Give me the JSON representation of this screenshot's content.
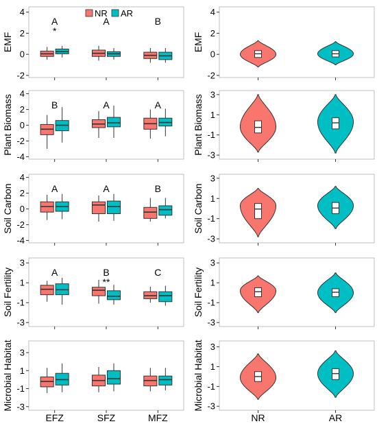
{
  "colors": {
    "NR": "#F8766D",
    "AR": "#00BFC4",
    "frame": "#bfbfbf",
    "outline": "#333333"
  },
  "legend": {
    "position": "top",
    "entries": [
      "NR",
      "AR"
    ]
  },
  "chart_data": [
    {
      "type": "box",
      "panel": "EMF-by-zone",
      "ylabel": "EMF",
      "ylim": [
        -2.2,
        4.5
      ],
      "yticks": [
        -2,
        0,
        2,
        4
      ],
      "categories": [
        "EFZ",
        "SFZ",
        "MFZ"
      ],
      "show_xticks": false,
      "letters": [
        "A",
        "A",
        "B"
      ],
      "stars": [
        "*",
        "",
        ""
      ],
      "series": [
        {
          "name": "NR",
          "boxes": [
            {
              "min": -0.5,
              "q1": -0.2,
              "median": 0.05,
              "q3": 0.3,
              "max": 0.7
            },
            {
              "min": -0.6,
              "q1": -0.2,
              "median": 0.1,
              "q3": 0.4,
              "max": 0.8
            },
            {
              "min": -0.8,
              "q1": -0.4,
              "median": -0.1,
              "q3": 0.2,
              "max": 0.6
            }
          ]
        },
        {
          "name": "AR",
          "boxes": [
            {
              "min": -0.3,
              "q1": 0.05,
              "median": 0.25,
              "q3": 0.5,
              "max": 0.8
            },
            {
              "min": -0.5,
              "q1": -0.2,
              "median": 0.05,
              "q3": 0.25,
              "max": 0.6
            },
            {
              "min": -0.8,
              "q1": -0.5,
              "median": -0.15,
              "q3": 0.2,
              "max": 0.6
            }
          ]
        }
      ]
    },
    {
      "type": "violin",
      "panel": "EMF-by-restoration",
      "ylabel": "EMF",
      "ylim": [
        -2.2,
        4.5
      ],
      "yticks": [
        -2,
        0,
        2,
        4
      ],
      "categories": [
        "NR",
        "AR"
      ],
      "show_xticks": false,
      "violins": [
        {
          "name": "NR",
          "min": -1.2,
          "max": 1.3,
          "q1": -0.3,
          "median": 0.05,
          "q3": 0.35,
          "peak": 0.0,
          "width": 0.45
        },
        {
          "name": "AR",
          "min": -1.0,
          "max": 1.2,
          "q1": -0.25,
          "median": 0.05,
          "q3": 0.35,
          "peak": 0.05,
          "width": 0.45
        }
      ]
    },
    {
      "type": "box",
      "panel": "Plant-Biomass-by-zone",
      "ylabel": "Plant Biomass",
      "ylim": [
        -4.3,
        4.4
      ],
      "yticks": [
        -4,
        -2,
        0,
        2,
        4
      ],
      "categories": [
        "EFZ",
        "SFZ",
        "MFZ"
      ],
      "show_xticks": false,
      "letters": [
        "B",
        "A",
        "A"
      ],
      "stars": [
        "",
        "",
        ""
      ],
      "series": [
        {
          "name": "NR",
          "boxes": [
            {
              "min": -3.0,
              "q1": -1.2,
              "median": -0.5,
              "q3": 0.1,
              "max": 1.3
            },
            {
              "min": -1.6,
              "q1": -0.3,
              "median": 0.15,
              "q3": 0.7,
              "max": 1.8
            },
            {
              "min": -1.7,
              "q1": -0.5,
              "median": 0.2,
              "q3": 0.9,
              "max": 2.0
            }
          ]
        },
        {
          "name": "AR",
          "boxes": [
            {
              "min": -2.2,
              "q1": -0.7,
              "median": 0.0,
              "q3": 0.6,
              "max": 2.3
            },
            {
              "min": -1.6,
              "q1": -0.2,
              "median": 0.3,
              "q3": 1.0,
              "max": 2.5
            },
            {
              "min": -1.4,
              "q1": -0.1,
              "median": 0.35,
              "q3": 0.9,
              "max": 2.1
            }
          ]
        }
      ]
    },
    {
      "type": "violin",
      "panel": "Plant-Biomass-by-restoration",
      "ylabel": "Plant Biomass",
      "ylim": [
        -3.4,
        3.4
      ],
      "yticks": [
        -3,
        -1,
        1,
        3
      ],
      "categories": [
        "NR",
        "AR"
      ],
      "show_xticks": false,
      "violins": [
        {
          "name": "NR",
          "min": -2.7,
          "max": 3.0,
          "q1": -0.8,
          "median": -0.25,
          "q3": 0.4,
          "peak": -0.2,
          "width": 0.45
        },
        {
          "name": "AR",
          "min": -2.8,
          "max": 3.0,
          "q1": -0.4,
          "median": 0.2,
          "q3": 0.7,
          "peak": 0.3,
          "width": 0.45
        }
      ]
    },
    {
      "type": "box",
      "panel": "Soil-Carbon-by-zone",
      "ylabel": "Soil Carbon",
      "ylim": [
        -4.3,
        4.4
      ],
      "yticks": [
        -4,
        -2,
        0,
        2,
        4
      ],
      "categories": [
        "EFZ",
        "SFZ",
        "MFZ"
      ],
      "show_xticks": false,
      "letters": [
        "A",
        "A",
        "B"
      ],
      "stars": [
        "",
        "",
        ""
      ],
      "series": [
        {
          "name": "NR",
          "boxes": [
            {
              "min": -1.4,
              "q1": -0.4,
              "median": 0.3,
              "q3": 0.9,
              "max": 1.8
            },
            {
              "min": -1.6,
              "q1": -0.6,
              "median": 0.5,
              "q3": 0.9,
              "max": 1.7
            },
            {
              "min": -1.6,
              "q1": -1.2,
              "median": -0.4,
              "q3": 0.2,
              "max": 1.4
            }
          ]
        },
        {
          "name": "AR",
          "boxes": [
            {
              "min": -1.3,
              "q1": -0.3,
              "median": 0.3,
              "q3": 0.9,
              "max": 1.9
            },
            {
              "min": -1.5,
              "q1": -0.6,
              "median": 0.3,
              "q3": 1.0,
              "max": 1.9
            },
            {
              "min": -1.2,
              "q1": -0.8,
              "median": -0.1,
              "q3": 0.4,
              "max": 1.4
            }
          ]
        }
      ]
    },
    {
      "type": "violin",
      "panel": "Soil-Carbon-by-restoration",
      "ylabel": "Soil Carbon",
      "ylim": [
        -3.4,
        3.4
      ],
      "yticks": [
        -3,
        -1,
        1,
        3
      ],
      "categories": [
        "NR",
        "AR"
      ],
      "show_xticks": false,
      "violins": [
        {
          "name": "NR",
          "min": -2.8,
          "max": 2.0,
          "q1": -1.0,
          "median": -0.05,
          "q3": 0.5,
          "peak": 0.3,
          "width": 0.45
        },
        {
          "name": "AR",
          "min": -2.0,
          "max": 2.2,
          "q1": -0.5,
          "median": 0.05,
          "q3": 0.6,
          "peak": 0.3,
          "width": 0.45
        }
      ]
    },
    {
      "type": "box",
      "panel": "Soil-Fertility-by-zone",
      "ylabel": "Soil Fertility",
      "ylim": [
        -3.4,
        3.5
      ],
      "yticks": [
        -3,
        -1,
        1,
        3
      ],
      "categories": [
        "EFZ",
        "SFZ",
        "MFZ"
      ],
      "show_xticks": false,
      "letters": [
        "A",
        "B",
        "C"
      ],
      "stars": [
        "",
        "**",
        ""
      ],
      "series": [
        {
          "name": "NR",
          "boxes": [
            {
              "min": -0.9,
              "q1": -0.2,
              "median": 0.35,
              "q3": 0.75,
              "max": 1.2
            },
            {
              "min": -1.1,
              "q1": -0.3,
              "median": 0.25,
              "q3": 0.55,
              "max": 1.3
            },
            {
              "min": -1.0,
              "q1": -0.6,
              "median": -0.3,
              "q3": 0.1,
              "max": 0.6
            }
          ]
        },
        {
          "name": "AR",
          "boxes": [
            {
              "min": -1.2,
              "q1": -0.2,
              "median": 0.3,
              "q3": 0.9,
              "max": 1.5
            },
            {
              "min": -1.2,
              "q1": -0.7,
              "median": -0.35,
              "q3": 0.2,
              "max": 0.8
            },
            {
              "min": -1.3,
              "q1": -0.9,
              "median": -0.3,
              "q3": 0.1,
              "max": 0.7
            }
          ]
        }
      ]
    },
    {
      "type": "violin",
      "panel": "Soil-Fertility-by-restoration",
      "ylabel": "Soil Fertility",
      "ylim": [
        -3.4,
        3.5
      ],
      "yticks": [
        -3,
        -1,
        1,
        3
      ],
      "categories": [
        "NR",
        "AR"
      ],
      "show_xticks": false,
      "violins": [
        {
          "name": "NR",
          "min": -2.0,
          "max": 1.7,
          "q1": -0.4,
          "median": 0.1,
          "q3": 0.5,
          "peak": 0.2,
          "width": 0.45
        },
        {
          "name": "AR",
          "min": -2.0,
          "max": 2.0,
          "q1": -0.4,
          "median": 0.05,
          "q3": 0.4,
          "peak": 0.0,
          "width": 0.45
        }
      ]
    },
    {
      "type": "box",
      "panel": "Microbial-Habitat-by-zone",
      "ylabel": "Microbial Habitat",
      "ylim": [
        -3.4,
        4.3
      ],
      "yticks": [
        -3,
        -1,
        1,
        3
      ],
      "categories": [
        "EFZ",
        "SFZ",
        "MFZ"
      ],
      "show_xticks": true,
      "letters": [
        "",
        "",
        ""
      ],
      "stars": [
        "",
        "",
        ""
      ],
      "series": [
        {
          "name": "NR",
          "boxes": [
            {
              "min": -1.5,
              "q1": -0.8,
              "median": -0.2,
              "q3": 0.3,
              "max": 1.3
            },
            {
              "min": -1.4,
              "q1": -0.7,
              "median": -0.1,
              "q3": 0.5,
              "max": 1.4
            },
            {
              "min": -1.3,
              "q1": -0.7,
              "median": -0.1,
              "q3": 0.4,
              "max": 1.3
            }
          ]
        },
        {
          "name": "AR",
          "boxes": [
            {
              "min": -1.4,
              "q1": -0.6,
              "median": 0.0,
              "q3": 0.7,
              "max": 1.8
            },
            {
              "min": -1.3,
              "q1": -0.5,
              "median": 0.1,
              "q3": 1.0,
              "max": 1.8
            },
            {
              "min": -1.2,
              "q1": -0.6,
              "median": 0.0,
              "q3": 0.4,
              "max": 1.3
            }
          ]
        }
      ]
    },
    {
      "type": "violin",
      "panel": "Microbial-Habitat-by-restoration",
      "ylabel": "Microbial Habitat",
      "ylim": [
        -3.4,
        3.6
      ],
      "yticks": [
        -3,
        -1,
        1,
        3
      ],
      "categories": [
        "NR",
        "AR"
      ],
      "show_xticks": true,
      "violins": [
        {
          "name": "NR",
          "min": -2.3,
          "max": 2.3,
          "q1": -0.5,
          "median": 0.0,
          "q3": 0.5,
          "peak": -0.1,
          "width": 0.45
        },
        {
          "name": "AR",
          "min": -2.1,
          "max": 2.6,
          "q1": -0.3,
          "median": 0.3,
          "q3": 0.8,
          "peak": 0.3,
          "width": 0.45
        }
      ]
    }
  ]
}
